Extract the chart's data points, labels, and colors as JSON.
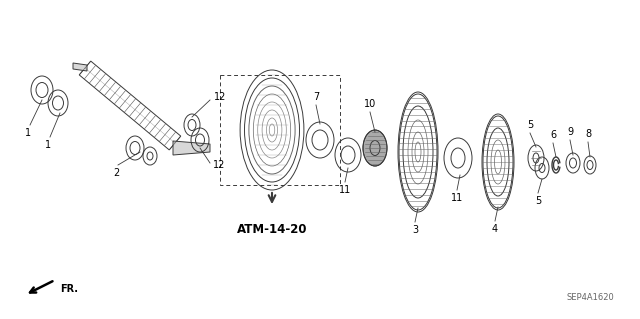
{
  "bg_color": "#ffffff",
  "dgray": "#3a3a3a",
  "lgray": "#888888",
  "mgray": "#666666",
  "ref_label": "SEP4A1620",
  "atm_label": "ATM-14-20",
  "fr_label": "FR."
}
